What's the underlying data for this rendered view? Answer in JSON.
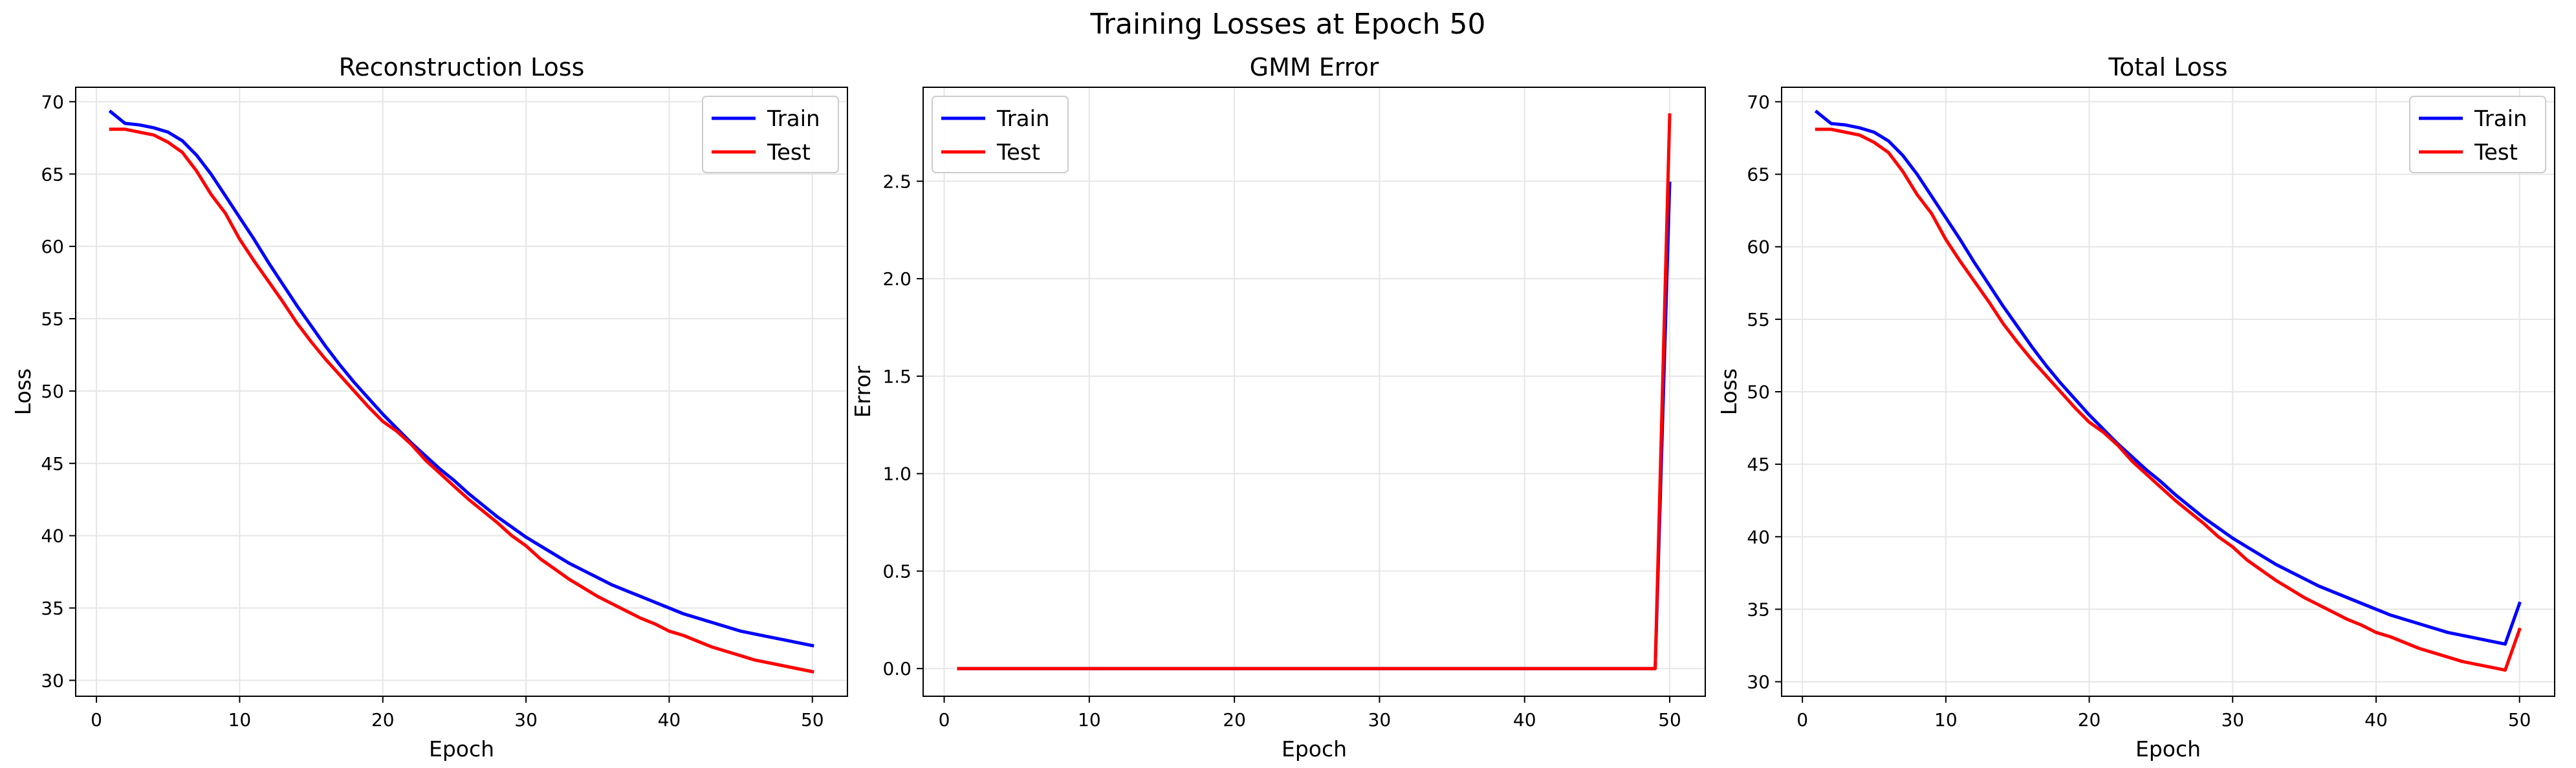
{
  "figure": {
    "title": "Training Losses at Epoch 50"
  },
  "colors": {
    "train": "#0000ff",
    "test": "#ff0000",
    "grid": "#e6e6e6",
    "axis": "#000000"
  },
  "chart_data": [
    {
      "type": "line",
      "title": "Reconstruction Loss",
      "xlabel": "Epoch",
      "ylabel": "Loss",
      "xlim": [
        -1.45,
        52.45
      ],
      "ylim": [
        28.9,
        71.0
      ],
      "xticks": [
        0,
        10,
        20,
        30,
        40,
        50
      ],
      "yticks": [
        30,
        35,
        40,
        45,
        50,
        55,
        60,
        65,
        70
      ],
      "ytick_labels": [
        "30",
        "35",
        "40",
        "45",
        "50",
        "55",
        "60",
        "65",
        "70"
      ],
      "grid": true,
      "legend": "top-right",
      "x": [
        1,
        2,
        3,
        4,
        5,
        6,
        7,
        8,
        9,
        10,
        11,
        12,
        13,
        14,
        15,
        16,
        17,
        18,
        19,
        20,
        21,
        22,
        23,
        24,
        25,
        26,
        27,
        28,
        29,
        30,
        31,
        32,
        33,
        34,
        35,
        36,
        37,
        38,
        39,
        40,
        41,
        42,
        43,
        44,
        45,
        46,
        47,
        48,
        49,
        50
      ],
      "series": [
        {
          "name": "Train",
          "color": "#0000ff",
          "values": [
            69.3,
            68.5,
            68.4,
            68.2,
            67.9,
            67.3,
            66.3,
            65.0,
            63.5,
            62.0,
            60.5,
            58.9,
            57.4,
            55.9,
            54.5,
            53.1,
            51.8,
            50.6,
            49.5,
            48.4,
            47.4,
            46.4,
            45.5,
            44.6,
            43.8,
            42.9,
            42.1,
            41.3,
            40.6,
            39.9,
            39.3,
            38.7,
            38.1,
            37.6,
            37.1,
            36.6,
            36.2,
            35.8,
            35.4,
            35.0,
            34.6,
            34.3,
            34.0,
            33.7,
            33.4,
            33.2,
            33.0,
            32.8,
            32.6,
            32.4
          ]
        },
        {
          "name": "Test",
          "color": "#ff0000",
          "values": [
            68.1,
            68.1,
            67.9,
            67.7,
            67.2,
            66.5,
            65.2,
            63.6,
            62.3,
            60.5,
            59.0,
            57.6,
            56.2,
            54.7,
            53.4,
            52.2,
            51.1,
            50.0,
            48.9,
            47.9,
            47.2,
            46.3,
            45.2,
            44.3,
            43.4,
            42.5,
            41.7,
            40.9,
            40.0,
            39.3,
            38.4,
            37.7,
            37.0,
            36.4,
            35.8,
            35.3,
            34.8,
            34.3,
            33.9,
            33.4,
            33.1,
            32.7,
            32.3,
            32.0,
            31.7,
            31.4,
            31.2,
            31.0,
            30.8,
            30.6
          ]
        }
      ]
    },
    {
      "type": "line",
      "title": "GMM Error",
      "xlabel": "Epoch",
      "ylabel": "Error",
      "xlim": [
        -1.45,
        52.45
      ],
      "ylim": [
        -0.142,
        2.982
      ],
      "xticks": [
        0,
        10,
        20,
        30,
        40,
        50
      ],
      "yticks": [
        0,
        0.5,
        1.0,
        1.5,
        2.0,
        2.5
      ],
      "ytick_labels": [
        "0.0",
        "0.5",
        "1.0",
        "1.5",
        "2.0",
        "2.5"
      ],
      "grid": true,
      "legend": "top-left",
      "x": [
        1,
        2,
        3,
        4,
        5,
        6,
        7,
        8,
        9,
        10,
        11,
        12,
        13,
        14,
        15,
        16,
        17,
        18,
        19,
        20,
        21,
        22,
        23,
        24,
        25,
        26,
        27,
        28,
        29,
        30,
        31,
        32,
        33,
        34,
        35,
        36,
        37,
        38,
        39,
        40,
        41,
        42,
        43,
        44,
        45,
        46,
        47,
        48,
        49,
        50
      ],
      "series": [
        {
          "name": "Train",
          "color": "#0000ff",
          "values": [
            0,
            0,
            0,
            0,
            0,
            0,
            0,
            0,
            0,
            0,
            0,
            0,
            0,
            0,
            0,
            0,
            0,
            0,
            0,
            0,
            0,
            0,
            0,
            0,
            0,
            0,
            0,
            0,
            0,
            0,
            0,
            0,
            0,
            0,
            0,
            0,
            0,
            0,
            0,
            0,
            0,
            0,
            0,
            0,
            0,
            0,
            0,
            0,
            0,
            2.49
          ]
        },
        {
          "name": "Test",
          "color": "#ff0000",
          "values": [
            0,
            0,
            0,
            0,
            0,
            0,
            0,
            0,
            0,
            0,
            0,
            0,
            0,
            0,
            0,
            0,
            0,
            0,
            0,
            0,
            0,
            0,
            0,
            0,
            0,
            0,
            0,
            0,
            0,
            0,
            0,
            0,
            0,
            0,
            0,
            0,
            0,
            0,
            0,
            0,
            0,
            0,
            0,
            0,
            0,
            0,
            0,
            0,
            0,
            2.84
          ]
        }
      ]
    },
    {
      "type": "line",
      "title": "Total Loss",
      "xlabel": "Epoch",
      "ylabel": "Loss",
      "xlim": [
        -1.45,
        52.45
      ],
      "ylim": [
        29.0,
        71.0
      ],
      "xticks": [
        0,
        10,
        20,
        30,
        40,
        50
      ],
      "yticks": [
        30,
        35,
        40,
        45,
        50,
        55,
        60,
        65,
        70
      ],
      "ytick_labels": [
        "30",
        "35",
        "40",
        "45",
        "50",
        "55",
        "60",
        "65",
        "70"
      ],
      "grid": true,
      "legend": "top-right",
      "x": [
        1,
        2,
        3,
        4,
        5,
        6,
        7,
        8,
        9,
        10,
        11,
        12,
        13,
        14,
        15,
        16,
        17,
        18,
        19,
        20,
        21,
        22,
        23,
        24,
        25,
        26,
        27,
        28,
        29,
        30,
        31,
        32,
        33,
        34,
        35,
        36,
        37,
        38,
        39,
        40,
        41,
        42,
        43,
        44,
        45,
        46,
        47,
        48,
        49,
        50
      ],
      "series": [
        {
          "name": "Train",
          "color": "#0000ff",
          "values": [
            69.3,
            68.5,
            68.4,
            68.2,
            67.9,
            67.3,
            66.3,
            65.0,
            63.5,
            62.0,
            60.5,
            58.9,
            57.4,
            55.9,
            54.5,
            53.1,
            51.8,
            50.6,
            49.5,
            48.4,
            47.4,
            46.4,
            45.5,
            44.6,
            43.8,
            42.9,
            42.1,
            41.3,
            40.6,
            39.9,
            39.3,
            38.7,
            38.1,
            37.6,
            37.1,
            36.6,
            36.2,
            35.8,
            35.4,
            35.0,
            34.6,
            34.3,
            34.0,
            33.7,
            33.4,
            33.2,
            33.0,
            32.8,
            32.6,
            35.4
          ]
        },
        {
          "name": "Test",
          "color": "#ff0000",
          "values": [
            68.1,
            68.1,
            67.9,
            67.7,
            67.2,
            66.5,
            65.2,
            63.6,
            62.3,
            60.5,
            59.0,
            57.6,
            56.2,
            54.7,
            53.4,
            52.2,
            51.1,
            50.0,
            48.9,
            47.9,
            47.2,
            46.3,
            45.2,
            44.3,
            43.4,
            42.5,
            41.7,
            40.9,
            40.0,
            39.3,
            38.4,
            37.7,
            37.0,
            36.4,
            35.8,
            35.3,
            34.8,
            34.3,
            33.9,
            33.4,
            33.1,
            32.7,
            32.3,
            32.0,
            31.7,
            31.4,
            31.2,
            31.0,
            30.8,
            33.6
          ]
        }
      ]
    }
  ]
}
